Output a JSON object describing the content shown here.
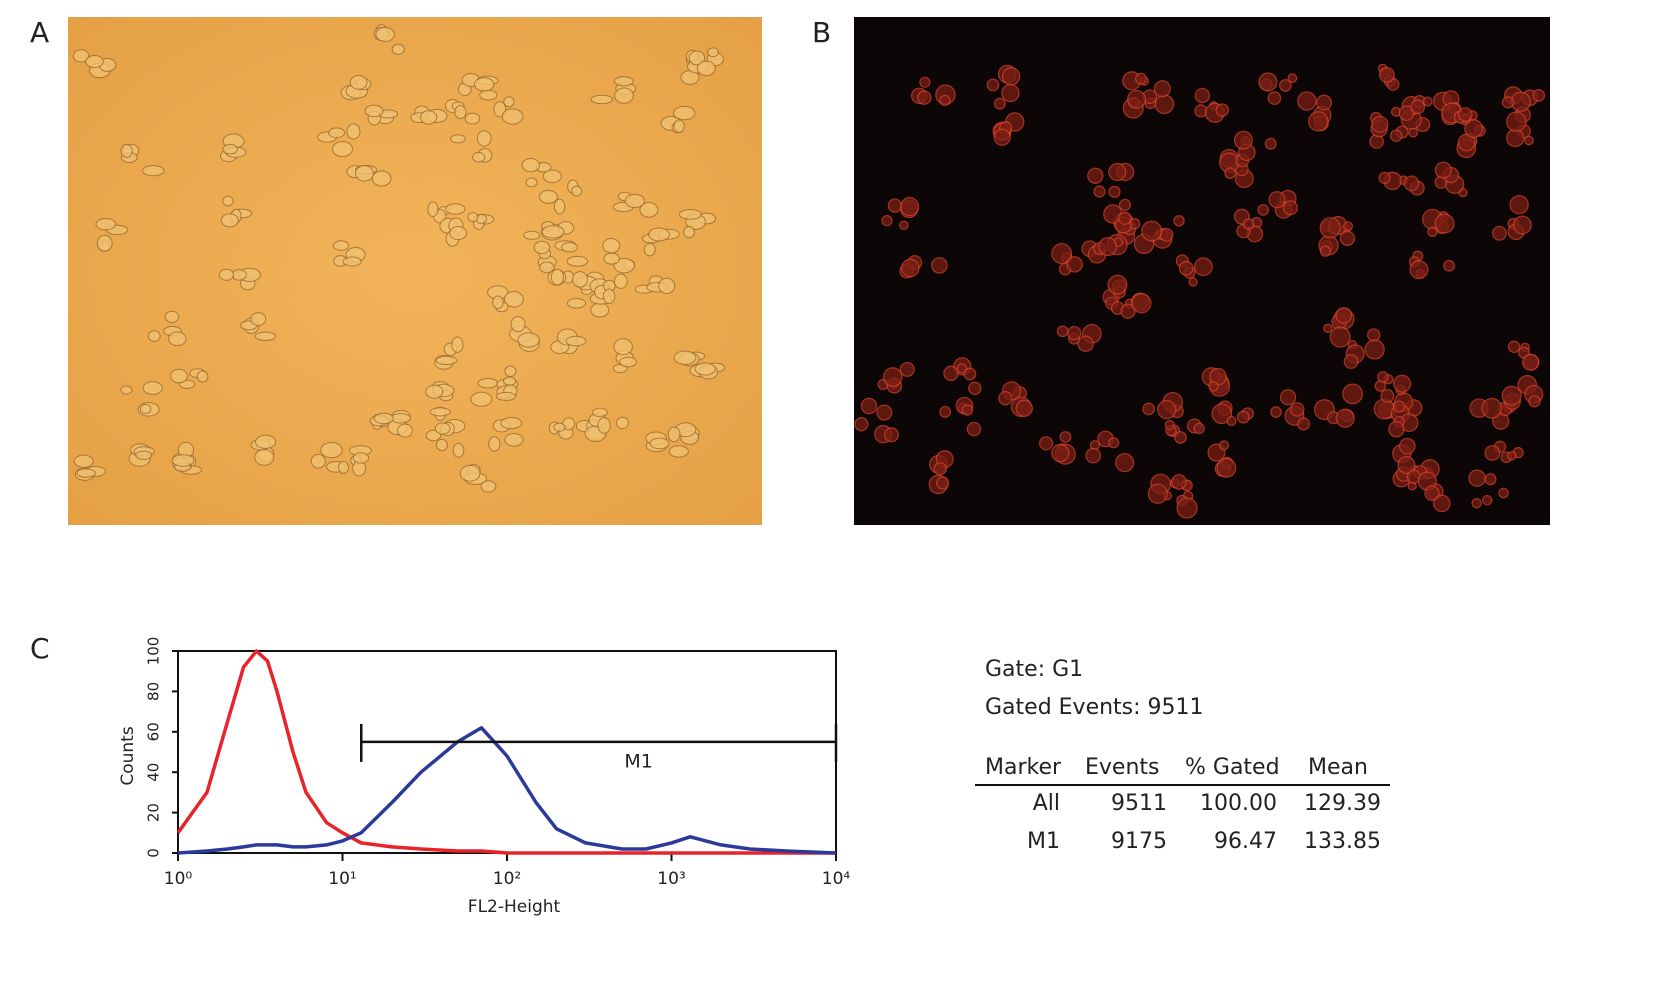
{
  "panels": {
    "a": "A",
    "b": "B",
    "c": "C"
  },
  "chart_data": {
    "type": "line",
    "xlabel": "FL2-Height",
    "ylabel": "Counts",
    "log_x": true,
    "x": [
      1,
      1.5,
      2,
      2.5,
      3,
      3.5,
      4,
      5,
      6,
      8,
      10,
      13,
      20,
      30,
      50,
      70,
      100,
      150,
      200,
      300,
      500,
      700,
      1000,
      1300,
      2000,
      3000,
      5000,
      10000
    ],
    "series": [
      {
        "color": "#e8232a",
        "values": [
          10,
          30,
          65,
          92,
          100,
          95,
          80,
          50,
          30,
          15,
          10,
          5,
          3,
          2,
          1,
          1,
          0,
          0,
          0,
          0,
          0,
          0,
          0,
          0,
          0,
          0,
          0,
          0
        ]
      },
      {
        "color": "#2b3a9a",
        "values": [
          0,
          1,
          2,
          3,
          4,
          4,
          4,
          3,
          3,
          4,
          6,
          10,
          25,
          40,
          55,
          62,
          48,
          25,
          12,
          5,
          2,
          2,
          5,
          8,
          4,
          2,
          1,
          0
        ]
      }
    ],
    "xlim": [
      1,
      10000
    ],
    "xticks": [
      {
        "value": 1,
        "label": "10⁰"
      },
      {
        "value": 10,
        "label": "10¹"
      },
      {
        "value": 100,
        "label": "10²"
      },
      {
        "value": 1000,
        "label": "10³"
      },
      {
        "value": 10000,
        "label": "10⁴"
      }
    ],
    "ylim": [
      0,
      100
    ],
    "yticks": [
      0,
      20,
      40,
      60,
      80,
      100
    ],
    "marker": {
      "label": "M1",
      "range": [
        13,
        10000
      ],
      "y": 55
    }
  },
  "stats": {
    "gate": "Gate: G1",
    "gated_events": "Gated Events: 9511",
    "table": {
      "header": [
        "Marker",
        "Events",
        "% Gated",
        "Mean"
      ],
      "rows": [
        [
          "All",
          "9511",
          "100.00",
          "129.39"
        ],
        [
          "M1",
          "9175",
          "96.47",
          "133.85"
        ]
      ]
    }
  }
}
